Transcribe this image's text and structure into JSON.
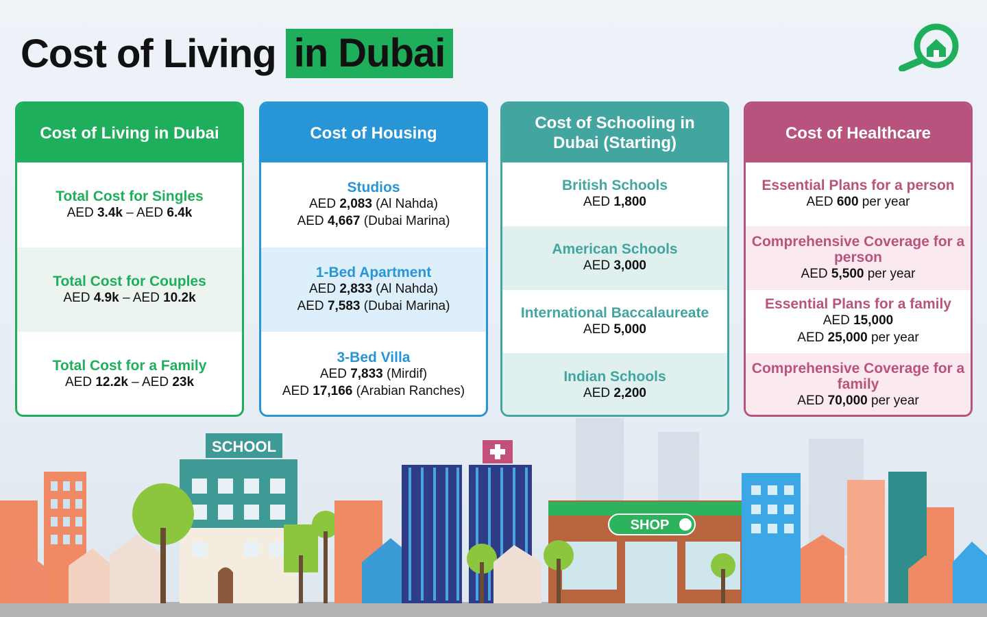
{
  "title": {
    "main": "Cost of Living",
    "highlight": "in Dubai"
  },
  "colors": {
    "green": "#1fae5b",
    "blue": "#2795d6",
    "teal": "#43a5a0",
    "pink": "#b8537d"
  },
  "logo": {
    "icon": "magnifier-house-icon"
  },
  "cards": [
    {
      "heading": "Cost of Living in Dubai",
      "rows": [
        {
          "label": "Total Cost for Singles",
          "l1a": "AED ",
          "l1b": "3.4k",
          "l1c": " – AED ",
          "l1d": "6.4k"
        },
        {
          "label": "Total Cost for Couples",
          "l1a": "AED ",
          "l1b": "4.9k",
          "l1c": " – AED ",
          "l1d": "10.2k"
        },
        {
          "label": "Total Cost for a Family",
          "l1a": "AED ",
          "l1b": "12.2k",
          "l1c": " – AED ",
          "l1d": "23k"
        }
      ]
    },
    {
      "heading": "Cost of Housing",
      "rows": [
        {
          "label": "Studios",
          "l1a": "AED ",
          "l1b": "2,083",
          "l1c": " (Al Nahda)",
          "l2a": "AED ",
          "l2b": "4,667",
          "l2c": " (Dubai Marina)"
        },
        {
          "label": "1-Bed Apartment",
          "l1a": "AED ",
          "l1b": "2,833",
          "l1c": " (Al Nahda)",
          "l2a": "AED ",
          "l2b": "7,583",
          "l2c": " (Dubai Marina)"
        },
        {
          "label": "3-Bed Villa",
          "l1a": "AED ",
          "l1b": "7,833",
          "l1c": " (Mirdif)",
          "l2a": "AED ",
          "l2b": "17,166",
          "l2c": " (Arabian Ranches)"
        }
      ]
    },
    {
      "heading": "Cost of Schooling in Dubai (Starting)",
      "rows": [
        {
          "label": "British Schools",
          "l1a": "AED ",
          "l1b": "1,800"
        },
        {
          "label": "American Schools",
          "l1a": "AED ",
          "l1b": "3,000"
        },
        {
          "label": "International Baccalaureate",
          "l1a": "AED ",
          "l1b": "5,000"
        },
        {
          "label": "Indian Schools",
          "l1a": "AED ",
          "l1b": "2,200"
        }
      ]
    },
    {
      "heading": "Cost of Healthcare",
      "rows": [
        {
          "label": "Essential Plans for a person",
          "l1a": "AED ",
          "l1b": "600",
          "l1c": " per year"
        },
        {
          "label": "Comprehensive Coverage for a person",
          "l1a": "AED ",
          "l1b": "5,500",
          "l1c": " per year"
        },
        {
          "label": "Essential Plans for a family",
          "l1a": "AED ",
          "l1b": "15,000",
          "l2a": "AED ",
          "l2b": "25,000",
          "l2c": " per year"
        },
        {
          "label": "Comprehensive Coverage for a family",
          "l1a": "AED ",
          "l1b": "70,000",
          "l1c": " per year"
        }
      ]
    }
  ],
  "illustration": {
    "school_sign": "SCHOOL",
    "shop_sign": "SHOP",
    "hospital_icon": "medical-cross-icon"
  }
}
